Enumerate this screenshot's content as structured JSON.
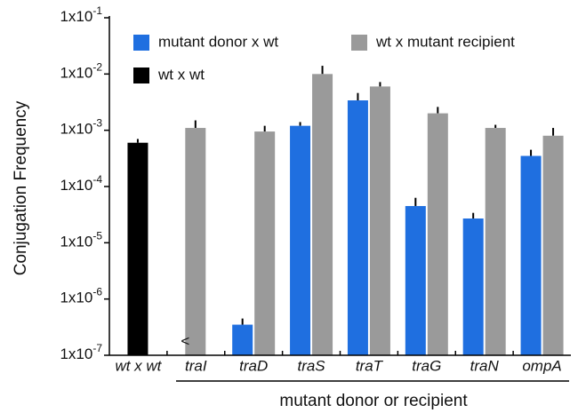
{
  "chart_data": {
    "type": "bar",
    "y_label": "Conjugation Frequency",
    "x_label": "mutant donor or recipient",
    "categories": [
      "wt x wt",
      "traI",
      "traD",
      "traS",
      "traT",
      "traG",
      "traN",
      "ompA"
    ],
    "series": [
      {
        "name": "mutant donor x wt",
        "color": "#1f6fe0",
        "values": [
          null,
          null,
          3.5e-07,
          0.0012,
          0.0034,
          4.5e-05,
          2.7e-05,
          0.00035
        ],
        "errors": [
          null,
          null,
          1e-07,
          0.0002,
          0.0012,
          1.8e-05,
          7e-06,
          0.0001
        ]
      },
      {
        "name": "wt x mutant recipient",
        "color": "#9a9a9a",
        "values": [
          null,
          0.0011,
          0.00095,
          0.01,
          0.006,
          0.002,
          0.0011,
          0.0008
        ],
        "errors": [
          null,
          0.0004,
          0.00025,
          0.004,
          0.0012,
          0.0006,
          0.00015,
          0.0003
        ]
      },
      {
        "name": "wt x wt",
        "color": "#000000",
        "values": [
          0.0006,
          null,
          null,
          null,
          null,
          null,
          null,
          null
        ],
        "errors": [
          0.0001,
          null,
          null,
          null,
          null,
          null,
          null,
          null
        ]
      }
    ],
    "annotation": "<",
    "log_scale": true,
    "ylim": [
      1e-07,
      0.1
    ],
    "yticks": [
      {
        "value": 0.1,
        "label": "1x10-1"
      },
      {
        "value": 0.01,
        "label": "1x10-2"
      },
      {
        "value": 0.001,
        "label": "1x10-3"
      },
      {
        "value": 0.0001,
        "label": "1x10-4"
      },
      {
        "value": 1e-05,
        "label": "1x10-5"
      },
      {
        "value": 1e-06,
        "label": "1x10-6"
      },
      {
        "value": 1e-07,
        "label": "1x10-7"
      }
    ]
  }
}
